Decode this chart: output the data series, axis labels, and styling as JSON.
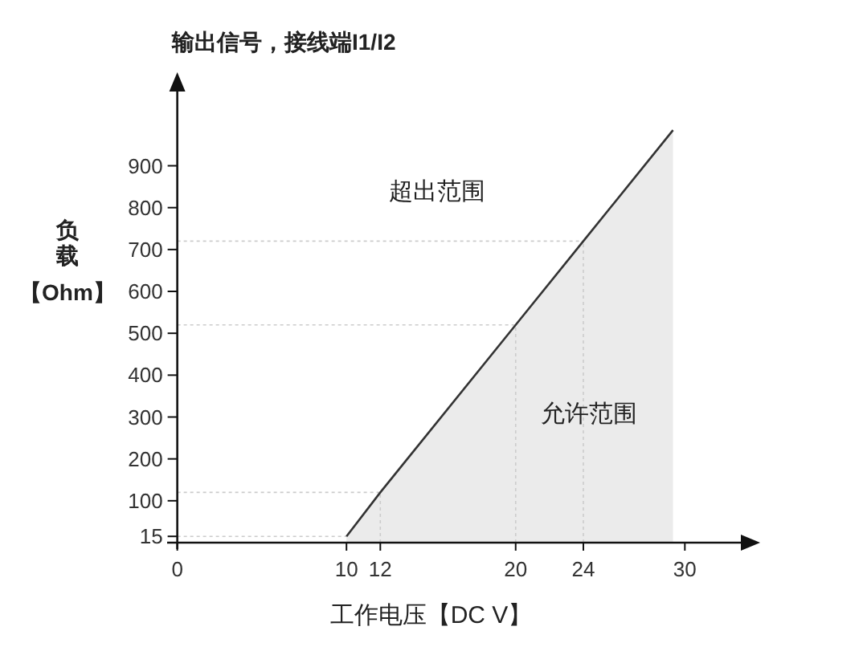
{
  "chart_data": {
    "type": "area",
    "title": "输出信号，接线端I1/I2",
    "xlabel": "工作电压【DC V】",
    "ylabel": "负载【Ohm】",
    "x": [
      10,
      12,
      20,
      24,
      29.3
    ],
    "values": [
      15,
      120,
      520,
      720,
      985
    ],
    "color": "#333333",
    "xlim": [
      -0.6,
      33.5
    ],
    "ylim": [
      0,
      1085
    ],
    "xticks": [
      0,
      10,
      12,
      20,
      24,
      30
    ],
    "yticks": [
      15,
      100,
      200,
      300,
      400,
      500,
      600,
      700,
      800,
      900
    ],
    "ref_lines": [
      {
        "axis": "y",
        "value": 15,
        "color": "#cccccc",
        "line_style": "dotted"
      },
      {
        "axis": "y",
        "value": 120,
        "color": "#cccccc",
        "line_style": "dotted"
      },
      {
        "axis": "y",
        "value": 520,
        "color": "#cccccc",
        "line_style": "dotted"
      },
      {
        "axis": "y",
        "value": 720,
        "color": "#cccccc",
        "line_style": "dotted"
      },
      {
        "axis": "x",
        "value": 12,
        "color": "#cccccc",
        "line_style": "dotted"
      },
      {
        "axis": "x",
        "value": 20,
        "color": "#cccccc",
        "line_style": "dotted"
      },
      {
        "axis": "x",
        "value": 24,
        "color": "#cccccc",
        "line_style": "dotted"
      }
    ],
    "annotations": [
      "超出范围",
      "允许范围"
    ],
    "grid": false
  }
}
